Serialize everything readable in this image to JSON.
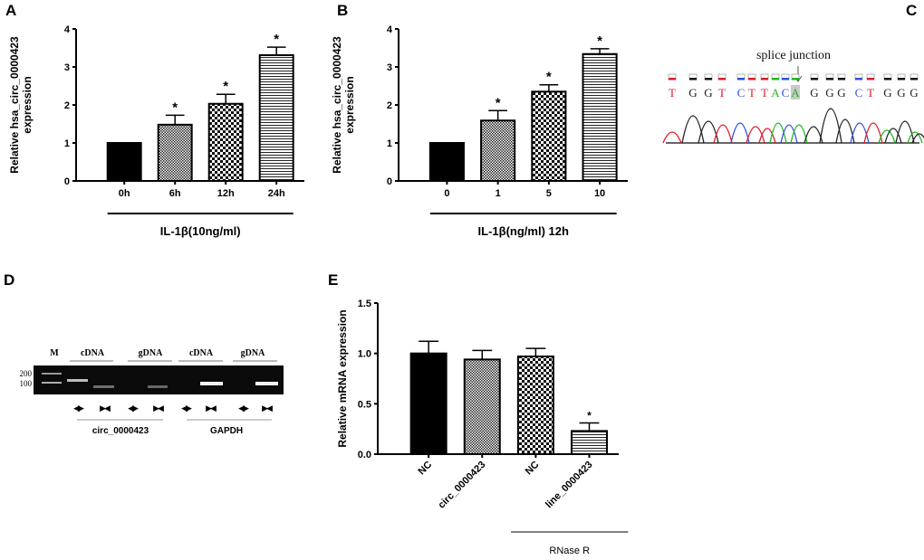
{
  "panels": {
    "A": "A",
    "B": "B",
    "C": "C",
    "D": "D",
    "E": "E"
  },
  "chart_data": [
    {
      "id": "A",
      "type": "bar",
      "ylabel_lines": [
        "Relative hsa_circ_0000423",
        "expression"
      ],
      "categories": [
        "0h",
        "6h",
        "12h",
        "24h"
      ],
      "values": [
        1.0,
        1.48,
        2.03,
        3.31
      ],
      "errors": [
        0.0,
        0.25,
        0.25,
        0.21
      ],
      "significance": [
        "",
        "*",
        "*",
        "*"
      ],
      "patterns": [
        "solid",
        "fine-check",
        "check",
        "hstripe"
      ],
      "yticks": [
        "0",
        "1",
        "2",
        "3",
        "4"
      ],
      "ylim": [
        0,
        4
      ],
      "group_label": "IL-1β(10ng/ml)"
    },
    {
      "id": "B",
      "type": "bar",
      "ylabel_lines": [
        "Relative hsa_circ_0000423",
        "expression"
      ],
      "categories": [
        "0",
        "1",
        "5",
        "10"
      ],
      "values": [
        1.0,
        1.59,
        2.35,
        3.34
      ],
      "errors": [
        0.0,
        0.26,
        0.18,
        0.14
      ],
      "significance": [
        "",
        "*",
        "*",
        "*"
      ],
      "patterns": [
        "solid",
        "fine-check",
        "check",
        "hstripe"
      ],
      "yticks": [
        "0",
        "1",
        "2",
        "3",
        "4"
      ],
      "ylim": [
        0,
        4
      ],
      "group_label": "IL-1β(ng/ml) 12h"
    },
    {
      "id": "E",
      "type": "bar",
      "ylabel_lines": [
        "Relative  mRNA expression"
      ],
      "categories": [
        "NC",
        "circ_0000423",
        "NC",
        "line_0000423"
      ],
      "values": [
        1.0,
        0.94,
        0.97,
        0.23
      ],
      "errors": [
        0.12,
        0.09,
        0.08,
        0.08
      ],
      "significance": [
        "",
        "",
        "",
        "*"
      ],
      "patterns": [
        "solid",
        "fine-check",
        "check",
        "hstripe"
      ],
      "yticks": [
        "0.0",
        "0.5",
        "1.0",
        "1.5"
      ],
      "ylim": [
        0,
        1.5
      ],
      "group_label": "RNase R",
      "group_span": [
        2,
        3
      ]
    }
  ],
  "sequence": {
    "annotation": "splice junction",
    "bases": [
      "T",
      "G",
      "G",
      "T",
      "C",
      "T",
      "T",
      "A",
      "C",
      "A",
      "G",
      "G",
      "G",
      "C",
      "T",
      "G",
      "G",
      "G"
    ],
    "highlighted_index": 9,
    "base_colors": {
      "A": "#1fb51f",
      "C": "#2f4fe0",
      "G": "#222222",
      "T": "#e01a2a"
    }
  },
  "gel": {
    "lane_headers": [
      "M",
      "cDNA",
      "gDNA",
      "cDNA",
      "gDNA"
    ],
    "markers": [
      "200",
      "100"
    ],
    "primer_symbols": [
      "◀▶",
      "▶◀",
      "◀▶",
      "▶◀",
      "◀▶",
      "▶◀",
      "◀▶",
      "▶◀"
    ],
    "gene_labels": [
      "circ_0000423",
      "GAPDH"
    ]
  }
}
